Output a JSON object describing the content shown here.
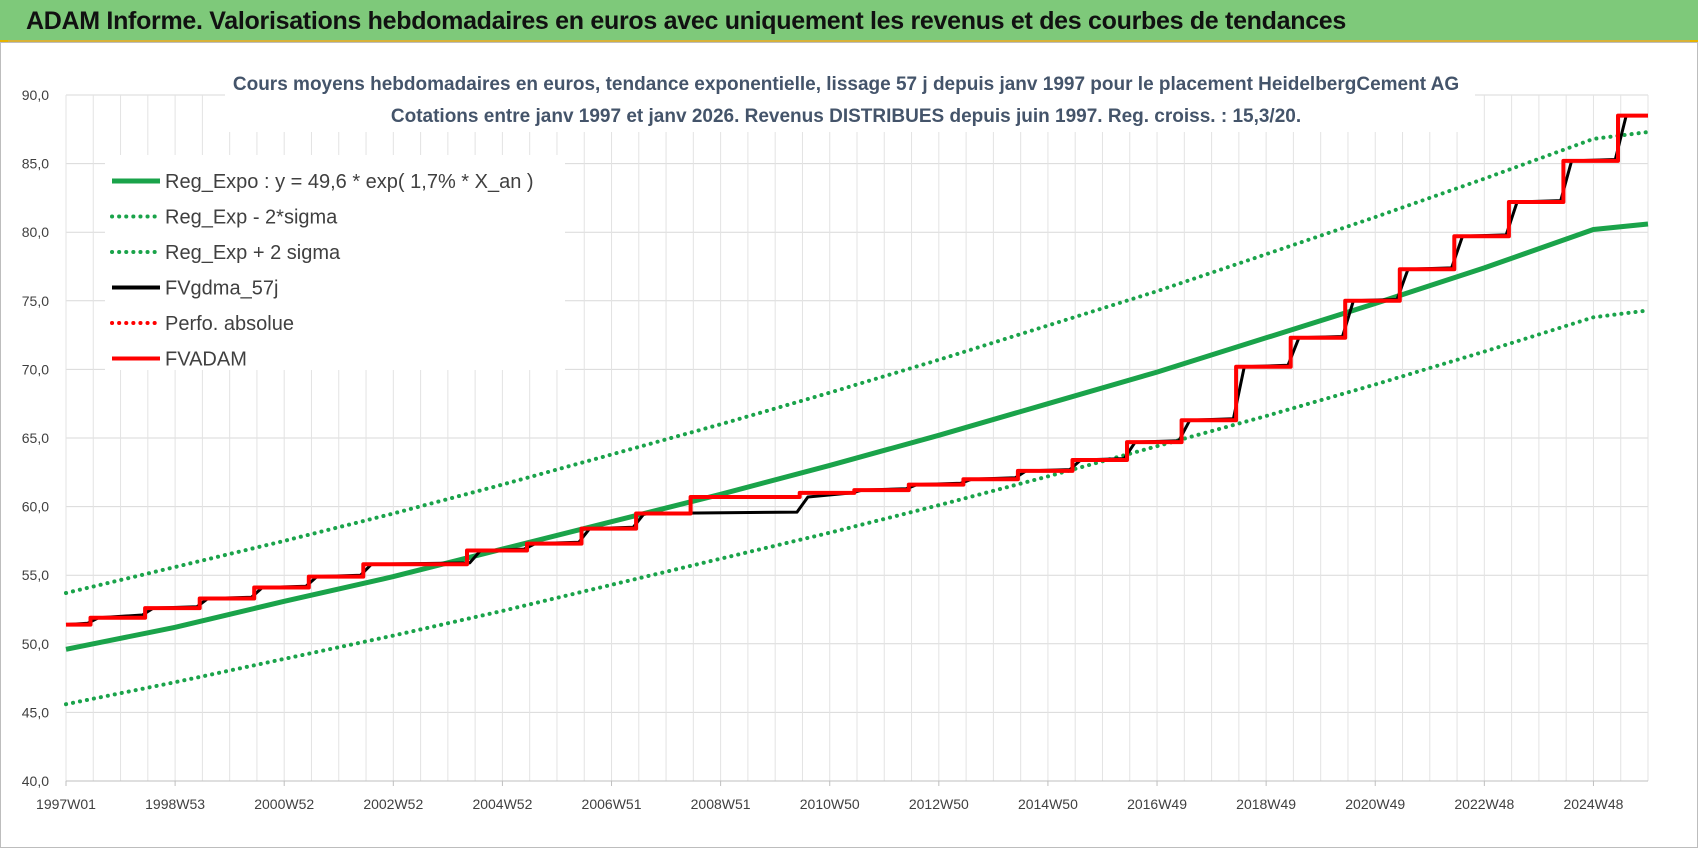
{
  "banner": {
    "title": "ADAM Informe. Valorisations hebdomadaires en euros avec uniquement les revenus et des courbes de tendances",
    "color": "#7ec97a"
  },
  "chart_data": {
    "type": "line",
    "title": "Cours moyens hebdomadaires en euros, tendance exponentielle, lissage 57 j depuis janv 1997  pour le placement HeidelbergCement AG",
    "subtitle": "Cotations entre janv 1997 et janv 2026. Revenus DISTRIBUES depuis juin 1997. Reg. croiss. : 15,3/20.",
    "xlabel": "",
    "ylabel": "",
    "ylim": [
      40,
      90
    ],
    "y_ticks": [
      "40,0",
      "45,0",
      "50,0",
      "55,0",
      "60,0",
      "65,0",
      "70,0",
      "75,0",
      "80,0",
      "85,0",
      "90,0"
    ],
    "x_range": [
      1997.0,
      2026.0
    ],
    "x_tick_labels": [
      "1997W01",
      "1998W53",
      "2000W52",
      "2002W52",
      "2004W52",
      "2006W51",
      "2008W51",
      "2010W50",
      "2012W50",
      "2014W50",
      "2016W49",
      "2018W49",
      "2020W49",
      "2022W48",
      "2024W48"
    ],
    "x_tick_positions": [
      1997.0,
      1999.0,
      2001.0,
      2003.0,
      2005.0,
      2007.0,
      2009.0,
      2011.0,
      2013.0,
      2015.0,
      2017.0,
      2019.0,
      2021.0,
      2023.0,
      2025.0
    ],
    "grid": true,
    "legend_position": "top-left",
    "series": [
      {
        "name": "Reg_Expo : y = 49,6 * exp( 1,7% *  X_an )",
        "color": "#1aa34a",
        "style": "solid",
        "x": [
          1997,
          1999,
          2001,
          2003,
          2005,
          2007,
          2009,
          2011,
          2013,
          2015,
          2017,
          2019,
          2021,
          2023,
          2025,
          2026
        ],
        "values": [
          49.6,
          51.2,
          53.1,
          54.9,
          56.9,
          58.9,
          60.9,
          63.0,
          65.2,
          67.5,
          69.8,
          72.3,
          74.8,
          77.4,
          80.2,
          80.6
        ]
      },
      {
        "name": "Reg_Exp - 2*sigma",
        "color": "#1aa34a",
        "style": "dotted",
        "x": [
          1997,
          1999,
          2001,
          2003,
          2005,
          2007,
          2009,
          2011,
          2013,
          2015,
          2017,
          2019,
          2021,
          2023,
          2025,
          2026
        ],
        "values": [
          45.6,
          47.2,
          48.9,
          50.6,
          52.4,
          54.3,
          56.2,
          58.1,
          60.1,
          62.2,
          64.4,
          66.6,
          68.9,
          71.3,
          73.8,
          74.3
        ]
      },
      {
        "name": "Reg_Exp + 2 sigma",
        "color": "#1aa34a",
        "style": "dotted",
        "x": [
          1997,
          1999,
          2001,
          2003,
          2005,
          2007,
          2009,
          2011,
          2013,
          2015,
          2017,
          2019,
          2021,
          2023,
          2025,
          2026
        ],
        "values": [
          53.7,
          55.6,
          57.5,
          59.5,
          61.6,
          63.8,
          66.0,
          68.3,
          70.7,
          73.2,
          75.7,
          78.4,
          81.1,
          83.9,
          86.8,
          87.3
        ]
      },
      {
        "name": "FVgdma_57j",
        "color": "#000000",
        "style": "solid",
        "x": [
          1997.0,
          1997.4,
          1997.6,
          1998.4,
          1998.6,
          1999.4,
          1999.6,
          2000.4,
          2000.6,
          2001.4,
          2001.6,
          2002.4,
          2002.6,
          2004.4,
          2004.6,
          2005.4,
          2005.6,
          2006.4,
          2006.6,
          2007.4,
          2007.6,
          2010.4,
          2010.6,
          2011.4,
          2011.6,
          2012.4,
          2012.6,
          2013.4,
          2013.6,
          2014.4,
          2014.6,
          2015.4,
          2015.6,
          2016.4,
          2016.6,
          2017.4,
          2017.6,
          2018.4,
          2018.6,
          2019.4,
          2019.6,
          2020.4,
          2020.6,
          2021.4,
          2021.6,
          2022.4,
          2022.6,
          2023.4,
          2023.6,
          2024.4,
          2024.6,
          2025.4,
          2025.6,
          2026.0
        ],
        "values": [
          51.4,
          51.5,
          51.9,
          52.1,
          52.6,
          52.7,
          53.3,
          53.4,
          54.1,
          54.2,
          54.9,
          55.0,
          55.8,
          55.9,
          56.8,
          56.9,
          57.3,
          57.4,
          58.4,
          58.5,
          59.5,
          59.6,
          60.7,
          61.0,
          61.2,
          61.3,
          61.6,
          61.7,
          62.0,
          62.1,
          62.6,
          62.7,
          63.4,
          63.5,
          64.7,
          64.8,
          66.3,
          66.4,
          70.2,
          70.3,
          72.3,
          72.4,
          75.0,
          75.1,
          77.3,
          77.4,
          79.7,
          79.8,
          82.2,
          82.3,
          85.2,
          85.3,
          88.5,
          88.5
        ]
      },
      {
        "name": "Perfo. absolue",
        "color": "#ff0000",
        "style": "dotted",
        "x": [],
        "values": []
      },
      {
        "name": "FVADAM",
        "color": "#ff0000",
        "style": "solid",
        "x": [
          1997.0,
          1997.45,
          1997.45,
          1998.45,
          1998.45,
          1999.45,
          1999.45,
          2000.45,
          2000.45,
          2001.45,
          2001.45,
          2002.45,
          2002.45,
          2004.35,
          2004.35,
          2005.45,
          2005.45,
          2006.45,
          2006.45,
          2007.45,
          2007.45,
          2008.45,
          2008.45,
          2010.45,
          2010.45,
          2011.45,
          2011.45,
          2012.45,
          2012.45,
          2013.45,
          2013.45,
          2014.45,
          2014.45,
          2015.45,
          2015.45,
          2016.45,
          2016.45,
          2017.45,
          2017.45,
          2018.45,
          2018.45,
          2019.45,
          2019.45,
          2020.45,
          2020.45,
          2021.45,
          2021.45,
          2022.45,
          2022.45,
          2023.45,
          2023.45,
          2024.45,
          2024.45,
          2025.45,
          2025.45,
          2026.0
        ],
        "values": [
          51.4,
          51.4,
          51.9,
          51.9,
          52.6,
          52.6,
          53.3,
          53.3,
          54.1,
          54.1,
          54.9,
          54.9,
          55.8,
          55.8,
          56.8,
          56.8,
          57.3,
          57.3,
          58.4,
          58.4,
          59.5,
          59.5,
          60.7,
          60.7,
          61.0,
          61.0,
          61.2,
          61.2,
          61.6,
          61.6,
          62.0,
          62.0,
          62.6,
          62.6,
          63.4,
          63.4,
          64.7,
          64.7,
          66.3,
          66.3,
          70.2,
          70.2,
          72.3,
          72.3,
          75.0,
          75.0,
          77.3,
          77.3,
          79.7,
          79.7,
          82.2,
          82.2,
          85.2,
          85.2,
          88.5,
          88.5
        ]
      }
    ]
  }
}
